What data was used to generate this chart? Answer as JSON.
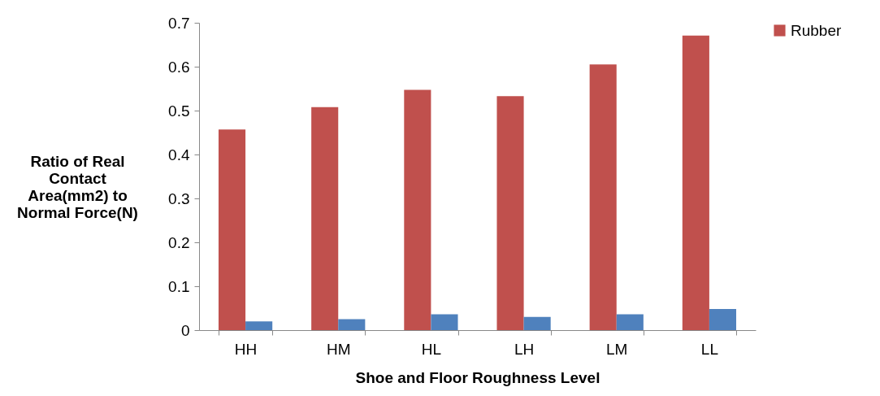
{
  "chart_data": {
    "type": "bar",
    "xlabel": "Shoe and Floor Roughness Level",
    "ylabel": "Ratio of Real Contact Area(mm2) to Normal Force(N)",
    "categories": [
      "HH",
      "HM",
      "HL",
      "LH",
      "LM",
      "LL"
    ],
    "series": [
      {
        "name": "Rubber",
        "color": "#c0504d",
        "values": [
          0.457,
          0.508,
          0.547,
          0.533,
          0.605,
          0.671
        ]
      },
      {
        "color": "#4f81bd",
        "values": [
          0.02,
          0.025,
          0.036,
          0.03,
          0.036,
          0.048
        ]
      }
    ],
    "ylim": [
      0,
      0.7
    ],
    "yticks": [
      0,
      0.1,
      0.2,
      0.3,
      0.4,
      0.5,
      0.6,
      0.7
    ],
    "grid": false,
    "legend": "right"
  }
}
